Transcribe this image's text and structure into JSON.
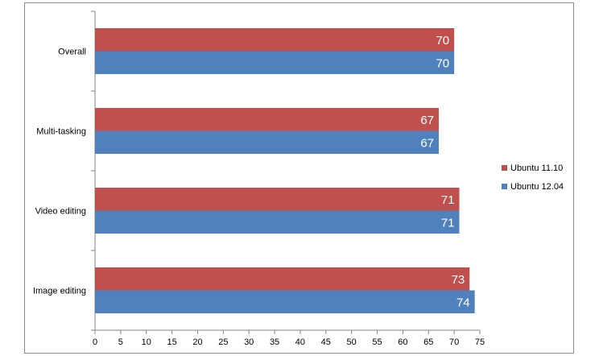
{
  "chart_data": {
    "type": "bar",
    "orientation": "horizontal",
    "categories": [
      "Overall",
      "Multi-tasking",
      "Video editing",
      "Image editing"
    ],
    "series": [
      {
        "name": "Ubuntu 11.10",
        "values": [
          70,
          67,
          71,
          73
        ],
        "color": "#c0504d"
      },
      {
        "name": "Ubuntu 12.04",
        "values": [
          70,
          67,
          71,
          74
        ],
        "color": "#4f81bd"
      }
    ],
    "x_ticks": [
      0,
      5,
      10,
      15,
      20,
      25,
      30,
      35,
      40,
      45,
      50,
      55,
      60,
      65,
      70,
      75
    ],
    "xlim": [
      0,
      75
    ],
    "title": "",
    "xlabel": "",
    "ylabel": "",
    "grid": false,
    "legend_position": "right"
  }
}
